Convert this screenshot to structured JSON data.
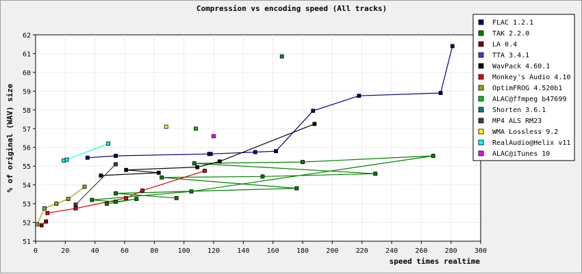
{
  "chart_data": {
    "type": "scatter",
    "title": "Compression vs encoding speed (All tracks)",
    "xlabel": "speed times realtime",
    "ylabel": "% of original (WAV) size",
    "xlim": [
      0,
      300
    ],
    "ylim": [
      51,
      62
    ],
    "xticks": [
      0,
      20,
      40,
      60,
      80,
      100,
      120,
      140,
      160,
      180,
      200,
      220,
      240,
      260,
      280,
      300
    ],
    "yticks": [
      51,
      52,
      53,
      54,
      55,
      56,
      57,
      58,
      59,
      60,
      61,
      62
    ],
    "grid": true,
    "legend_position": "right",
    "series": [
      {
        "name": "FLAC 1.2.1",
        "color": "#000080",
        "points": [
          [
            35,
            55.45
          ],
          [
            54,
            55.55
          ],
          [
            117,
            55.65
          ],
          [
            118,
            55.65
          ],
          [
            148,
            55.75
          ],
          [
            162,
            55.8
          ],
          [
            187,
            57.95
          ],
          [
            218,
            58.75
          ],
          [
            273,
            58.9
          ],
          [
            281,
            61.4
          ]
        ]
      },
      {
        "name": "TAK 2.2.0",
        "color": "#008000",
        "points": [
          [
            95,
            53.3
          ],
          [
            54,
            53.55
          ],
          [
            176,
            53.82
          ],
          [
            85,
            54.4
          ],
          [
            153,
            54.45
          ],
          [
            229,
            54.6
          ],
          [
            107,
            55.15
          ],
          [
            180,
            55.22
          ],
          [
            268,
            55.55
          ],
          [
            105,
            53.65
          ],
          [
            38,
            53.2
          ],
          [
            54,
            53.1
          ],
          [
            68,
            53.25
          ],
          [
            48,
            53.0
          ]
        ]
      },
      {
        "name": "LA 0.4",
        "color": "#800000",
        "points": [
          [
            4,
            51.85
          ],
          [
            7,
            52.05
          ]
        ]
      },
      {
        "name": "TTA 3.4.1",
        "color": "#4040d0",
        "points": []
      },
      {
        "name": "WavPack 4.60.1",
        "color": "#000000",
        "points": [
          [
            44,
            54.5
          ],
          [
            83,
            54.65
          ],
          [
            61,
            54.8
          ],
          [
            109,
            54.95
          ],
          [
            124,
            55.25
          ],
          [
            188,
            57.25
          ]
        ]
      },
      {
        "name": "Monkey's Audio 4.10",
        "color": "#e00000",
        "points": [
          [
            8,
            52.5
          ],
          [
            27,
            52.75
          ],
          [
            61,
            53.3
          ],
          [
            72,
            53.7
          ],
          [
            114,
            54.75
          ]
        ]
      },
      {
        "name": "OptimFROG 4.520b1",
        "color": "#a0a000",
        "points": [
          [
            1,
            51.9
          ],
          [
            6,
            52.75
          ],
          [
            14,
            53.0
          ],
          [
            22,
            53.25
          ],
          [
            33,
            53.9
          ]
        ]
      },
      {
        "name": "ALAC@ffmpeg b47699",
        "color": "#00cc00",
        "points": [
          [
            108,
            57.0
          ]
        ]
      },
      {
        "name": "Shorten 3.6.1",
        "color": "#008080",
        "points": [
          [
            166,
            60.85
          ]
        ]
      },
      {
        "name": "MP4 ALS RM23",
        "color": "#404040",
        "points": [
          [
            27,
            52.95
          ],
          [
            54,
            55.1
          ]
        ]
      },
      {
        "name": "WMA Lossless 9.2",
        "color": "#ffff00",
        "points": [
          [
            88,
            57.1
          ]
        ]
      },
      {
        "name": "RealAudio@Helix v11",
        "color": "#00ffff",
        "points": [
          [
            19,
            55.3
          ],
          [
            21,
            55.35
          ],
          [
            49,
            56.2
          ]
        ]
      },
      {
        "name": "ALAC@iTunes 10",
        "color": "#ff00ff",
        "points": [
          [
            120,
            56.6
          ]
        ]
      }
    ]
  }
}
